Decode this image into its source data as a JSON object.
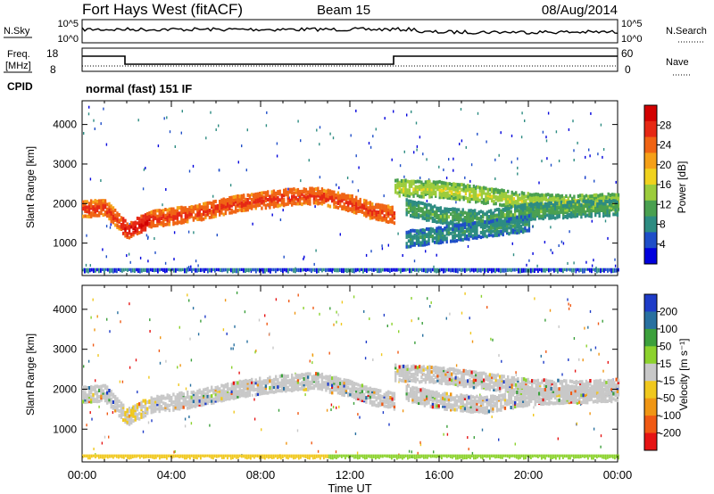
{
  "header": {
    "title": "Fort Hays West (fitACF)",
    "beam": "Beam 15",
    "date": "08/Aug/2014"
  },
  "top_panels": {
    "nsky_label": "N.Sky",
    "nsearch_label": "N.Search",
    "nsky_ticks": [
      "10^5",
      "10^0"
    ],
    "freq_label_line1": "Freq.",
    "freq_label_line2": "[MHz]",
    "freq_ticks": [
      "18",
      "8"
    ],
    "nave_label": "Nave",
    "nave_ticks": [
      "60",
      "0"
    ],
    "cpid_label": "CPID",
    "cpid_text": "normal (fast) 151 IF"
  },
  "chart_data": [
    {
      "type": "heatmap",
      "title": "",
      "xlabel": "Time UT",
      "ylabel": "Slant Range [km]",
      "xlim": [
        0,
        24
      ],
      "ylim": [
        180,
        4600
      ],
      "xticks": [
        "00:00",
        "04:00",
        "08:00",
        "12:00",
        "16:00",
        "20:00",
        "00:00"
      ],
      "yticks": [
        1000,
        2000,
        3000,
        4000
      ],
      "colorbar_label": "Power [dB]",
      "colorbar_ticks": [
        4,
        8,
        12,
        16,
        20,
        24,
        28
      ],
      "colorbar_colors": [
        "#0000dd",
        "#1e4ec8",
        "#2d8c82",
        "#4aa050",
        "#9ccc3c",
        "#f0d21e",
        "#f5a018",
        "#f06414",
        "#e62814",
        "#d20000"
      ],
      "bands": [
        {
          "t": [
            0,
            1,
            2,
            3,
            5,
            7,
            9,
            10.5,
            12,
            13,
            14
          ],
          "range": [
            1850,
            1900,
            1300,
            1600,
            1750,
            2000,
            2150,
            2200,
            2000,
            1800,
            1700
          ],
          "level": 20
        },
        {
          "t": [
            14,
            16,
            18,
            20,
            22,
            24
          ],
          "range": [
            2400,
            2350,
            2200,
            2050,
            2000,
            2050
          ],
          "level": 10
        },
        {
          "t": [
            14.5,
            16,
            18,
            20,
            22,
            24
          ],
          "range": [
            1900,
            1700,
            1600,
            1800,
            1850,
            1900
          ],
          "level": 6
        },
        {
          "t": [
            14.5,
            16,
            18,
            20
          ],
          "range": [
            1100,
            1200,
            1350,
            1500
          ],
          "level": 4
        }
      ]
    },
    {
      "type": "heatmap",
      "title": "",
      "xlabel": "Time UT",
      "ylabel": "Slant Range [km]",
      "xlim": [
        0,
        24
      ],
      "ylim": [
        180,
        4600
      ],
      "xticks": [
        "00:00",
        "04:00",
        "08:00",
        "12:00",
        "16:00",
        "20:00",
        "00:00"
      ],
      "yticks": [
        1000,
        2000,
        3000,
        4000
      ],
      "colorbar_label": "Velocity [m s⁻¹]",
      "colorbar_ticks": [
        200,
        100,
        50,
        15,
        -15,
        -50,
        -100,
        -200
      ],
      "colorbar_colors": [
        "#1e3cc8",
        "#2870a0",
        "#3ca03c",
        "#8cd22d",
        "#c8c8c8",
        "#f0c81e",
        "#f09614",
        "#f05a14",
        "#e61414"
      ],
      "bands": [
        {
          "t": [
            0,
            1,
            2,
            3,
            5,
            7,
            9,
            10.5,
            12,
            13,
            14
          ],
          "range": [
            1850,
            1900,
            1300,
            1600,
            1750,
            2000,
            2150,
            2200,
            2000,
            1800,
            1700
          ],
          "level": 0
        },
        {
          "t": [
            14,
            16,
            18,
            20,
            22,
            24
          ],
          "range": [
            2400,
            2350,
            2200,
            2050,
            2000,
            2050
          ],
          "level": 0
        },
        {
          "t": [
            14.5,
            16,
            18,
            20,
            22,
            24
          ],
          "range": [
            1900,
            1700,
            1600,
            1800,
            1850,
            1900
          ],
          "level": 0
        }
      ]
    }
  ]
}
